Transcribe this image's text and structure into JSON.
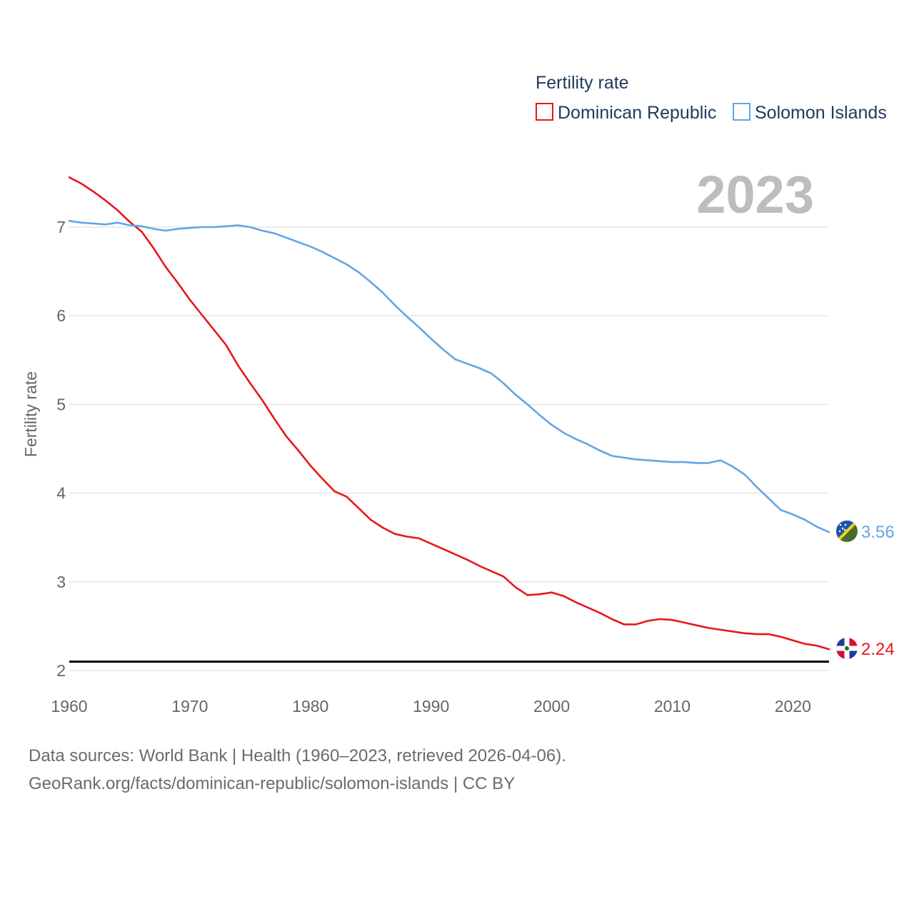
{
  "chart_data": {
    "type": "line",
    "title": "",
    "legend_title": "Fertility rate",
    "ylabel": "Fertility rate",
    "xlabel": "",
    "year_label": "2023",
    "xlim": [
      1960,
      2023
    ],
    "ylim": [
      2,
      7.6
    ],
    "x_ticks": [
      1960,
      1970,
      1980,
      1990,
      2000,
      2010,
      2020
    ],
    "y_ticks": [
      2,
      3,
      4,
      5,
      6,
      7
    ],
    "reference_line": 2.1,
    "grid": true,
    "legend_position": "top-right",
    "x": [
      1960,
      1961,
      1962,
      1963,
      1964,
      1965,
      1966,
      1967,
      1968,
      1969,
      1970,
      1971,
      1972,
      1973,
      1974,
      1975,
      1976,
      1977,
      1978,
      1979,
      1980,
      1981,
      1982,
      1983,
      1984,
      1985,
      1986,
      1987,
      1988,
      1989,
      1990,
      1991,
      1992,
      1993,
      1994,
      1995,
      1996,
      1997,
      1998,
      1999,
      2000,
      2001,
      2002,
      2003,
      2004,
      2005,
      2006,
      2007,
      2008,
      2009,
      2010,
      2011,
      2012,
      2013,
      2014,
      2015,
      2016,
      2017,
      2018,
      2019,
      2020,
      2021,
      2022,
      2023
    ],
    "series": [
      {
        "name": "Dominican Republic",
        "color": "#e8161c",
        "end_label": "2.24",
        "flag": "dominican-republic-flag-icon",
        "values": [
          7.56,
          7.49,
          7.4,
          7.3,
          7.19,
          7.06,
          6.95,
          6.76,
          6.55,
          6.37,
          6.18,
          6.01,
          5.84,
          5.67,
          5.44,
          5.24,
          5.05,
          4.84,
          4.64,
          4.48,
          4.31,
          4.16,
          4.02,
          3.96,
          3.83,
          3.7,
          3.61,
          3.54,
          3.51,
          3.49,
          3.43,
          3.37,
          3.31,
          3.25,
          3.18,
          3.12,
          3.06,
          2.94,
          2.85,
          2.86,
          2.88,
          2.84,
          2.77,
          2.71,
          2.65,
          2.58,
          2.52,
          2.52,
          2.56,
          2.58,
          2.57,
          2.54,
          2.51,
          2.48,
          2.46,
          2.44,
          2.42,
          2.41,
          2.41,
          2.38,
          2.34,
          2.3,
          2.28,
          2.24
        ]
      },
      {
        "name": "Solomon Islands",
        "color": "#63a5e4",
        "end_label": "3.56",
        "flag": "solomon-islands-flag-icon",
        "values": [
          7.07,
          7.05,
          7.04,
          7.03,
          7.05,
          7.02,
          7.01,
          6.98,
          6.96,
          6.98,
          6.99,
          7.0,
          7.0,
          7.01,
          7.02,
          7.0,
          6.96,
          6.93,
          6.88,
          6.83,
          6.78,
          6.72,
          6.65,
          6.58,
          6.49,
          6.38,
          6.26,
          6.12,
          5.99,
          5.87,
          5.74,
          5.62,
          5.51,
          5.46,
          5.41,
          5.35,
          5.24,
          5.11,
          5.0,
          4.88,
          4.77,
          4.68,
          4.61,
          4.55,
          4.48,
          4.42,
          4.4,
          4.38,
          4.37,
          4.36,
          4.35,
          4.35,
          4.34,
          4.34,
          4.37,
          4.3,
          4.21,
          4.07,
          3.94,
          3.81,
          3.76,
          3.7,
          3.62,
          3.56
        ]
      }
    ]
  },
  "footer": {
    "line1": "Data sources: World Bank | Health (1960–2023, retrieved 2026-04-06).",
    "line2": "GeoRank.org/facts/dominican-republic/solomon-islands | CC BY"
  }
}
